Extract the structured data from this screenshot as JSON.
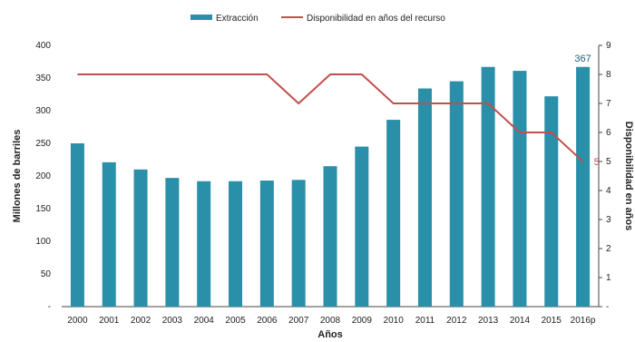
{
  "chart_data": {
    "type": "bar",
    "categories": [
      "2000",
      "2001",
      "2002",
      "2003",
      "2004",
      "2005",
      "2006",
      "2007",
      "2008",
      "2009",
      "2010",
      "2011",
      "2012",
      "2013",
      "2014",
      "2015",
      "2016p"
    ],
    "series": [
      {
        "name": "Extracción",
        "type": "bar",
        "axis": "left",
        "color": "#2a8fa8",
        "values": [
          250,
          221,
          210,
          197,
          192,
          192,
          193,
          194,
          215,
          245,
          286,
          334,
          345,
          367,
          361,
          322,
          367
        ]
      },
      {
        "name": "Disponibilidad en años del recurso",
        "type": "line",
        "axis": "right",
        "color": "#c0504d",
        "values": [
          8,
          8,
          8,
          8,
          8,
          8,
          8,
          7,
          8,
          8,
          7,
          7,
          7,
          7,
          6,
          6,
          5
        ]
      }
    ],
    "xlabel": "Años",
    "ylabel": "Millones de barriles",
    "y2label": "Disponibilidad en años",
    "ylim": [
      0,
      400
    ],
    "y2lim": [
      0,
      9
    ],
    "yticks": [
      "-",
      "50",
      "100",
      "150",
      "200",
      "250",
      "300",
      "350",
      "400"
    ],
    "y2ticks": [
      "-",
      "1",
      "2",
      "3",
      "4",
      "5",
      "6",
      "7",
      "8",
      "9"
    ],
    "data_labels": {
      "bar_last": "367",
      "line_last": "5"
    },
    "legend_position": "top",
    "grid": false
  }
}
